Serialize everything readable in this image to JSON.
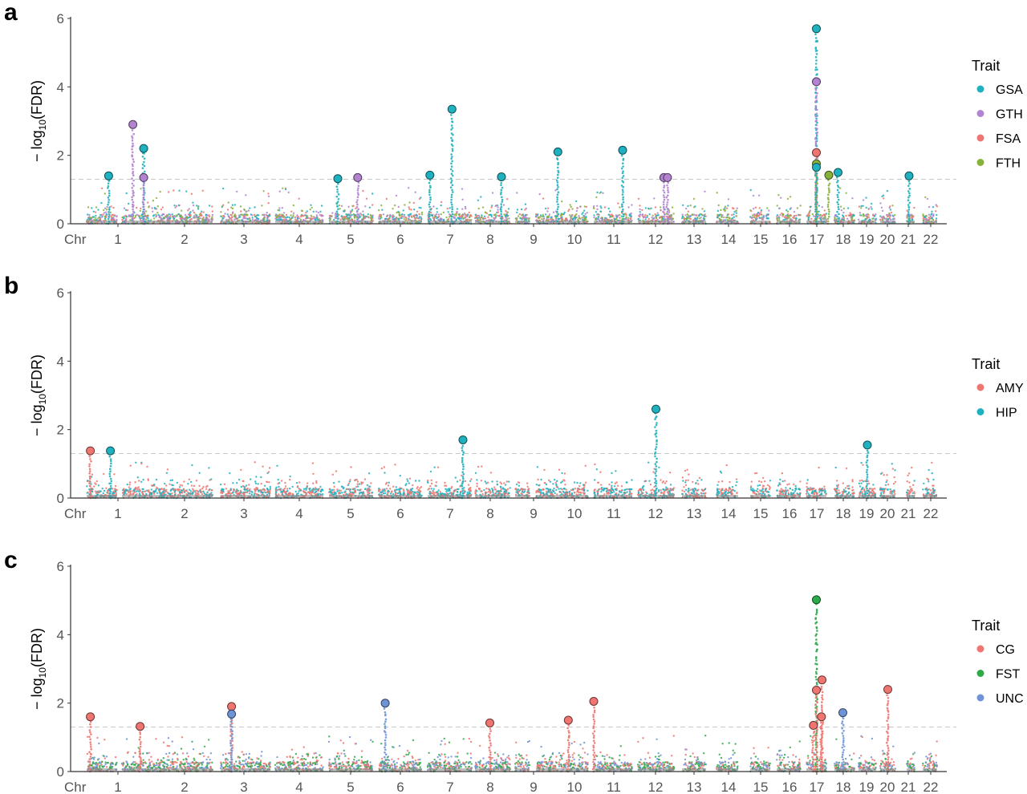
{
  "chart_data": [
    {
      "panel": "a",
      "type": "scatter",
      "ylabel": "− log10(FDR)",
      "ylabel_parts": [
        "− log",
        "10",
        "(FDR)"
      ],
      "x_axis_label": "Chr",
      "ylim": [
        0,
        6
      ],
      "y_ticks": [
        "0",
        "2",
        "4",
        "6"
      ],
      "threshold": 1.3,
      "chromosomes": [
        "1",
        "2",
        "3",
        "4",
        "5",
        "6",
        "7",
        "8",
        "9",
        "10",
        "11",
        "12",
        "13",
        "14",
        "15",
        "16",
        "17",
        "18",
        "19",
        "20",
        "21",
        "22"
      ],
      "legend_title": "Trait",
      "series": [
        {
          "name": "GSA",
          "color": "#1fb1bf"
        },
        {
          "name": "GTH",
          "color": "#b283d0"
        },
        {
          "name": "FSA",
          "color": "#ee7570"
        },
        {
          "name": "FTH",
          "color": "#86b23b"
        }
      ],
      "highlights": [
        {
          "chr": "1",
          "pos": 0.72,
          "value": 1.4,
          "trait": "GSA"
        },
        {
          "chr": "2",
          "pos": 0.12,
          "value": 2.9,
          "trait": "GTH"
        },
        {
          "chr": "2",
          "pos": 0.24,
          "value": 2.2,
          "trait": "GSA"
        },
        {
          "chr": "2",
          "pos": 0.24,
          "value": 1.35,
          "trait": "GTH"
        },
        {
          "chr": "5",
          "pos": 0.2,
          "value": 1.32,
          "trait": "GSA"
        },
        {
          "chr": "5",
          "pos": 0.65,
          "value": 1.35,
          "trait": "GTH"
        },
        {
          "chr": "7",
          "pos": 0.05,
          "value": 1.42,
          "trait": "GSA"
        },
        {
          "chr": "7",
          "pos": 0.55,
          "value": 3.35,
          "trait": "GSA"
        },
        {
          "chr": "8",
          "pos": 0.75,
          "value": 1.37,
          "trait": "GSA"
        },
        {
          "chr": "10",
          "pos": 0.42,
          "value": 2.1,
          "trait": "GSA"
        },
        {
          "chr": "11",
          "pos": 0.75,
          "value": 2.15,
          "trait": "GSA"
        },
        {
          "chr": "12",
          "pos": 0.72,
          "value": 1.35,
          "trait": "GTH"
        },
        {
          "chr": "12",
          "pos": 0.82,
          "value": 1.35,
          "trait": "GTH"
        },
        {
          "chr": "17",
          "pos": 0.5,
          "value": 5.7,
          "trait": "GSA"
        },
        {
          "chr": "17",
          "pos": 0.5,
          "value": 4.15,
          "trait": "GTH"
        },
        {
          "chr": "17",
          "pos": 0.5,
          "value": 2.08,
          "trait": "FSA"
        },
        {
          "chr": "17",
          "pos": 0.5,
          "value": 1.75,
          "trait": "FTH"
        },
        {
          "chr": "17",
          "pos": 0.5,
          "value": 1.65,
          "trait": "GSA"
        },
        {
          "chr": "17",
          "pos": 1.12,
          "value": 1.42,
          "trait": "FTH"
        },
        {
          "chr": "18",
          "pos": 0.18,
          "value": 1.5,
          "trait": "GSA"
        },
        {
          "chr": "21",
          "pos": 0.3,
          "value": 1.4,
          "trait": "GSA"
        }
      ]
    },
    {
      "panel": "b",
      "type": "scatter",
      "ylabel": "− log10(FDR)",
      "ylabel_parts": [
        "− log",
        "10",
        "(FDR)"
      ],
      "x_axis_label": "Chr",
      "ylim": [
        0,
        6
      ],
      "y_ticks": [
        "0",
        "2",
        "4",
        "6"
      ],
      "threshold": 1.3,
      "chromosomes": [
        "1",
        "2",
        "3",
        "4",
        "5",
        "6",
        "7",
        "8",
        "9",
        "10",
        "11",
        "12",
        "13",
        "14",
        "15",
        "16",
        "17",
        "18",
        "19",
        "20",
        "21",
        "22"
      ],
      "legend_title": "Trait",
      "series": [
        {
          "name": "AMY",
          "color": "#ee7570"
        },
        {
          "name": "HIP",
          "color": "#1fb1bf"
        }
      ],
      "highlights": [
        {
          "chr": "1",
          "pos": 0.12,
          "value": 1.38,
          "trait": "AMY"
        },
        {
          "chr": "1",
          "pos": 0.78,
          "value": 1.38,
          "trait": "HIP"
        },
        {
          "chr": "7",
          "pos": 0.8,
          "value": 1.7,
          "trait": "HIP"
        },
        {
          "chr": "12",
          "pos": 0.5,
          "value": 2.6,
          "trait": "HIP"
        },
        {
          "chr": "19",
          "pos": 0.5,
          "value": 1.55,
          "trait": "HIP"
        }
      ]
    },
    {
      "panel": "c",
      "type": "scatter",
      "ylabel": "− log10(FDR)",
      "ylabel_parts": [
        "− log",
        "10",
        "(FDR)"
      ],
      "x_axis_label": "Chr",
      "ylim": [
        0,
        6
      ],
      "y_ticks": [
        "0",
        "2",
        "4",
        "6"
      ],
      "threshold": 1.3,
      "chromosomes": [
        "1",
        "2",
        "3",
        "4",
        "5",
        "6",
        "7",
        "8",
        "9",
        "10",
        "11",
        "12",
        "13",
        "14",
        "15",
        "16",
        "17",
        "18",
        "19",
        "20",
        "21",
        "22"
      ],
      "legend_title": "Trait",
      "series": [
        {
          "name": "CG",
          "color": "#ee7570"
        },
        {
          "name": "FST",
          "color": "#2ea94a"
        },
        {
          "name": "UNC",
          "color": "#6f93d6"
        }
      ],
      "highlights": [
        {
          "chr": "1",
          "pos": 0.12,
          "value": 1.6,
          "trait": "CG"
        },
        {
          "chr": "2",
          "pos": 0.2,
          "value": 1.32,
          "trait": "CG"
        },
        {
          "chr": "3",
          "pos": 0.22,
          "value": 1.9,
          "trait": "CG"
        },
        {
          "chr": "3",
          "pos": 0.22,
          "value": 1.68,
          "trait": "UNC"
        },
        {
          "chr": "6",
          "pos": 0.15,
          "value": 2.0,
          "trait": "UNC"
        },
        {
          "chr": "8",
          "pos": 0.42,
          "value": 1.42,
          "trait": "CG"
        },
        {
          "chr": "10",
          "pos": 0.62,
          "value": 1.5,
          "trait": "CG"
        },
        {
          "chr": "11",
          "pos": 0.0,
          "value": 2.05,
          "trait": "CG"
        },
        {
          "chr": "17",
          "pos": 0.5,
          "value": 5.02,
          "trait": "FST"
        },
        {
          "chr": "17",
          "pos": 0.5,
          "value": 2.38,
          "trait": "CG"
        },
        {
          "chr": "17",
          "pos": 0.35,
          "value": 1.35,
          "trait": "CG"
        },
        {
          "chr": "17",
          "pos": 0.78,
          "value": 2.68,
          "trait": "CG"
        },
        {
          "chr": "17",
          "pos": 0.75,
          "value": 1.6,
          "trait": "CG"
        },
        {
          "chr": "18",
          "pos": 0.42,
          "value": 1.72,
          "trait": "UNC"
        },
        {
          "chr": "20",
          "pos": 0.5,
          "value": 2.4,
          "trait": "CG"
        }
      ]
    }
  ]
}
